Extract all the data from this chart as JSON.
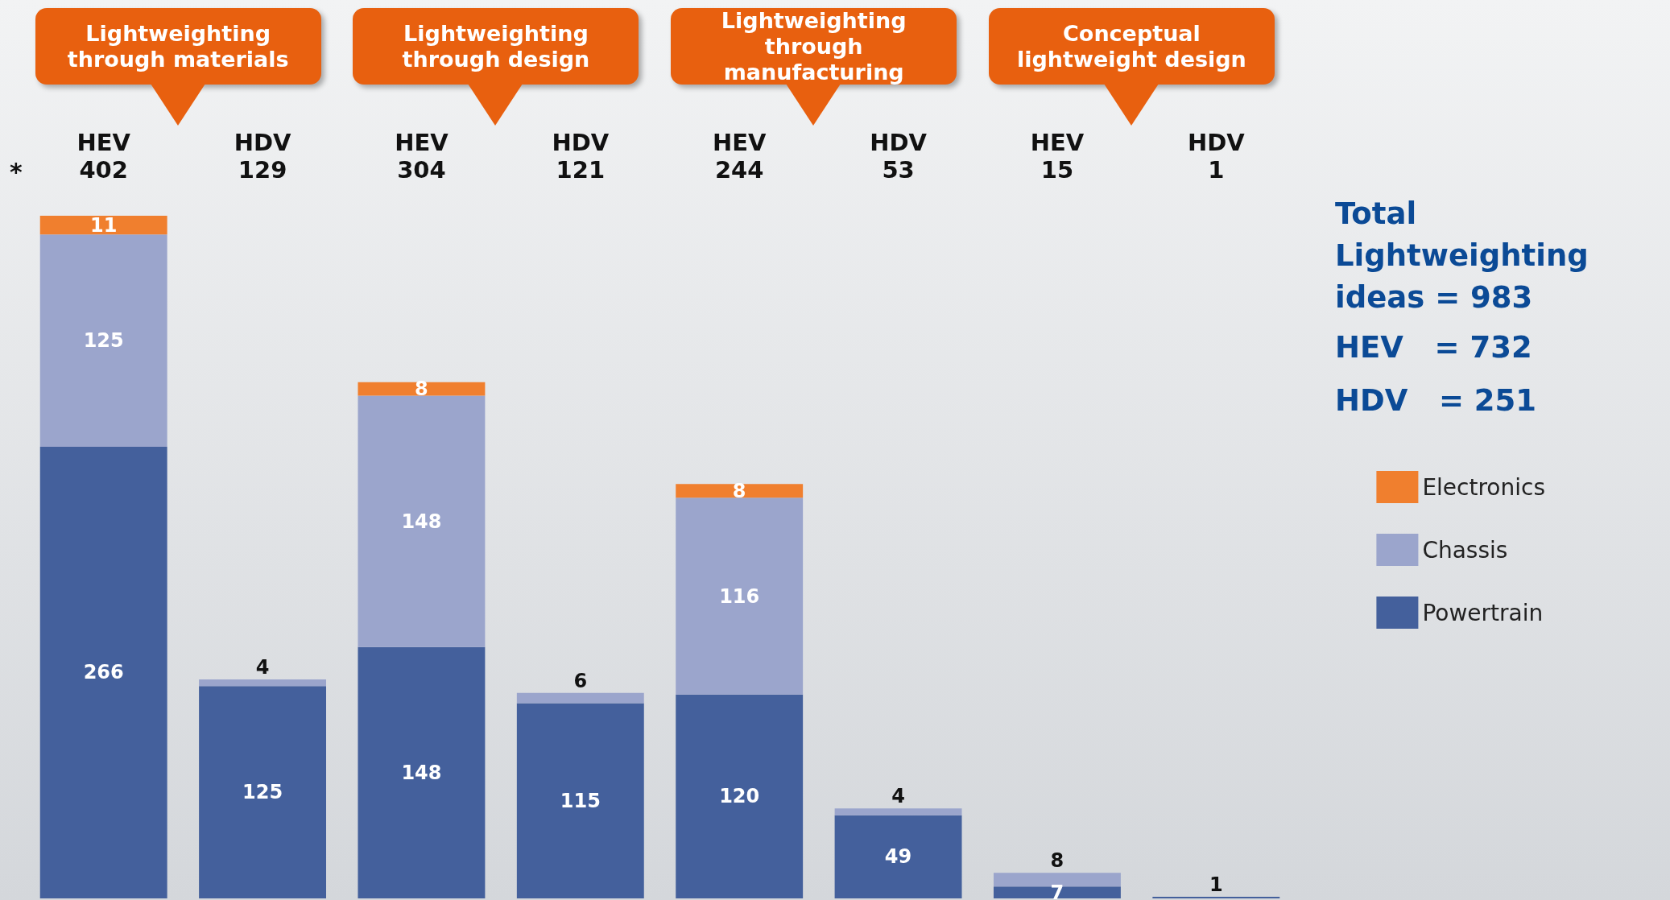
{
  "chart_data": {
    "type": "bar",
    "stacked": true,
    "data_labels": true,
    "legend": "right",
    "categories": [
      "HEV\n402",
      "HDV\n129",
      "HEV\n304",
      "HDV\n121",
      "HEV\n244",
      "HDV\n53",
      "HEV\n15",
      "HDV\n1"
    ],
    "series": [
      {
        "name": "Powertrain",
        "color": "#44609c",
        "values": [
          266,
          125,
          148,
          115,
          120,
          49,
          7,
          1
        ]
      },
      {
        "name": "Chassis",
        "color": "#9ba5cc",
        "values": [
          125,
          4,
          148,
          6,
          116,
          4,
          8,
          null
        ]
      },
      {
        "name": "Electronics",
        "color": "#f07f2e",
        "values": [
          11,
          null,
          8,
          null,
          8,
          null,
          null,
          null
        ]
      }
    ],
    "annotations": [
      "Lightweighting through materials",
      "Lightweighting through design",
      "Lightweighting through manufacturing",
      "Conceptual lightweight design",
      "*",
      "Total Lightweighting ideas = 983",
      "HEV   = 732",
      "HDV   = 251"
    ]
  }
}
